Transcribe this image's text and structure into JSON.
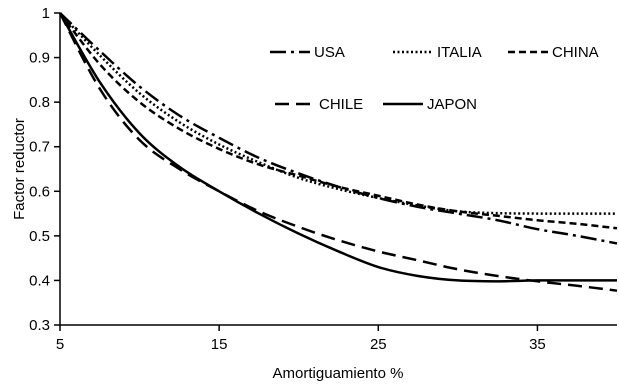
{
  "chart_data": {
    "type": "line",
    "title": "",
    "xlabel": "Amortiguamiento %",
    "ylabel": "Factor reductor",
    "xlim": [
      5,
      40
    ],
    "ylim": [
      0.3,
      1.0
    ],
    "x_ticks": [
      "5",
      "15",
      "25",
      "35"
    ],
    "x_tick_values": [
      5,
      15,
      25,
      35
    ],
    "y_ticks": [
      "0.3",
      "0.4",
      "0.5",
      "0.6",
      "0.7",
      "0.8",
      "0.9",
      "1"
    ],
    "y_tick_values": [
      0.3,
      0.4,
      0.5,
      0.6,
      0.7,
      0.8,
      0.9,
      1.0
    ],
    "grid": false,
    "legend_position": "top-right",
    "series": [
      {
        "name": "USA",
        "line_style": "dash-dot",
        "x": [
          5,
          7.5,
          10,
          12.5,
          15,
          17.5,
          20,
          22.5,
          25,
          27.5,
          30,
          32.5,
          35,
          37.5,
          40
        ],
        "y": [
          1.0,
          0.915,
          0.835,
          0.77,
          0.72,
          0.675,
          0.64,
          0.61,
          0.585,
          0.565,
          0.55,
          0.535,
          0.515,
          0.5,
          0.483
        ]
      },
      {
        "name": "ITALIA",
        "line_style": "dotted",
        "x": [
          5,
          7.5,
          10,
          12.5,
          15,
          17.5,
          20,
          22.5,
          25,
          27.5,
          30,
          32.5,
          35,
          37.5,
          40
        ],
        "y": [
          1.0,
          0.905,
          0.82,
          0.755,
          0.705,
          0.665,
          0.63,
          0.605,
          0.585,
          0.568,
          0.555,
          0.551,
          0.55,
          0.55,
          0.55
        ]
      },
      {
        "name": "CHINA",
        "line_style": "dashed",
        "x": [
          5,
          7.5,
          10,
          12.5,
          15,
          17.5,
          20,
          22.5,
          25,
          27.5,
          30,
          32.5,
          35,
          37.5,
          40
        ],
        "y": [
          1.0,
          0.885,
          0.8,
          0.74,
          0.695,
          0.66,
          0.635,
          0.61,
          0.59,
          0.57,
          0.555,
          0.545,
          0.535,
          0.527,
          0.517
        ]
      },
      {
        "name": "CHILE",
        "line_style": "long-dash",
        "x": [
          5,
          7.5,
          10,
          12.5,
          15,
          17.5,
          20,
          22.5,
          25,
          27.5,
          30,
          32.5,
          35,
          37.5,
          40
        ],
        "y": [
          1.0,
          0.83,
          0.715,
          0.65,
          0.6,
          0.555,
          0.52,
          0.49,
          0.465,
          0.445,
          0.425,
          0.41,
          0.398,
          0.388,
          0.377
        ]
      },
      {
        "name": "JAPON",
        "line_style": "solid",
        "x": [
          5,
          7.5,
          10,
          12.5,
          15,
          17.5,
          20,
          22.5,
          25,
          27.5,
          30,
          32.5,
          35,
          37.5,
          40
        ],
        "y": [
          1.0,
          0.845,
          0.73,
          0.655,
          0.6,
          0.55,
          0.505,
          0.465,
          0.43,
          0.41,
          0.4,
          0.398,
          0.4,
          0.4,
          0.4
        ]
      }
    ]
  }
}
